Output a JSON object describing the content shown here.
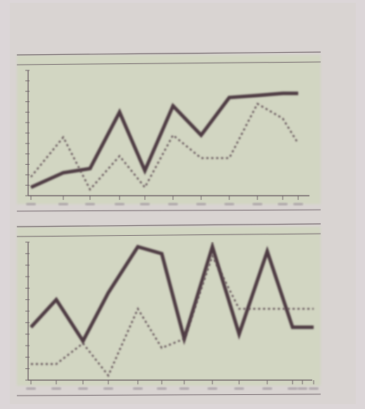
{
  "header": {
    "line1": "",
    "line2": ""
  },
  "colors": {
    "background": "#dcd6d8",
    "paper": "#d9d4d2",
    "panel": "#d2d6c2",
    "solid_line": "#4e3a42",
    "dotted_line": "#5a4650",
    "axis": "#6e6268"
  },
  "chart_data": [
    {
      "type": "line",
      "title": "",
      "xlabel": "",
      "ylabel": "",
      "categories": [
        "1",
        "2",
        "3",
        "4",
        "5",
        "6",
        "7",
        "8",
        "9",
        "10",
        "11"
      ],
      "ylim": [
        0,
        12
      ],
      "grid": false,
      "series": [
        {
          "style": "solid",
          "values": [
            0.8,
            2.2,
            2.6,
            8.0,
            2.4,
            8.6,
            5.8,
            9.4,
            9.6,
            9.8,
            9.8
          ]
        },
        {
          "style": "dotted",
          "values": [
            1.8,
            5.6,
            0.6,
            3.8,
            0.8,
            5.8,
            3.6,
            3.6,
            8.8,
            7.4,
            5.0
          ]
        }
      ]
    },
    {
      "type": "line",
      "title": "",
      "xlabel": "",
      "ylabel": "",
      "categories": [
        "1",
        "2",
        "3",
        "4",
        "5",
        "6",
        "7",
        "8",
        "9",
        "10",
        "11",
        "12",
        "13"
      ],
      "ylim": [
        0,
        12
      ],
      "grid": false,
      "series": [
        {
          "style": "solid",
          "values": [
            4.6,
            7.0,
            3.4,
            7.6,
            11.6,
            11.0,
            3.6,
            11.6,
            4.0,
            11.2,
            4.6,
            4.6,
            4.6
          ]
        },
        {
          "style": "dotted",
          "values": [
            1.4,
            1.4,
            3.2,
            0.4,
            6.2,
            2.8,
            3.6,
            10.8,
            6.2,
            6.2,
            6.2,
            6.2,
            6.2
          ]
        }
      ]
    }
  ]
}
